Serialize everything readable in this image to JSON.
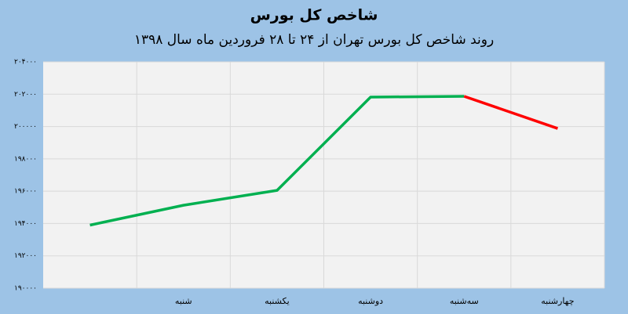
{
  "chart_data": {
    "type": "line",
    "title": "شاخص کل بورس",
    "subtitle": "روند شاخص کل بورس تهران از ۲۴ تا ۲۸ فروردین ماه سال ۱۳۹۸",
    "categories": [
      null,
      "شنبه",
      "یکشنبه",
      "دوشنبه",
      "سه‌شنبه",
      "چهارشنبه"
    ],
    "series": [
      {
        "color": "#00b050",
        "values": [
          193900,
          195130,
          196050,
          201820,
          201870,
          null
        ]
      },
      {
        "color": "#ff0000",
        "values": [
          null,
          null,
          null,
          null,
          201870,
          199880
        ]
      }
    ],
    "ylim": [
      190000,
      204000
    ],
    "yticks": [
      {
        "value": 190000,
        "label": "۱۹۰۰۰۰"
      },
      {
        "value": 192000,
        "label": "۱۹۲۰۰۰"
      },
      {
        "value": 194000,
        "label": "۱۹۴۰۰۰"
      },
      {
        "value": 196000,
        "label": "۱۹۶۰۰۰"
      },
      {
        "value": 198000,
        "label": "۱۹۸۰۰۰"
      },
      {
        "value": 200000,
        "label": "۲۰۰۰۰۰"
      },
      {
        "value": 202000,
        "label": "۲۰۲۰۰۰"
      },
      {
        "value": 204000,
        "label": "۲۰۴۰۰۰"
      }
    ],
    "grid": true
  }
}
